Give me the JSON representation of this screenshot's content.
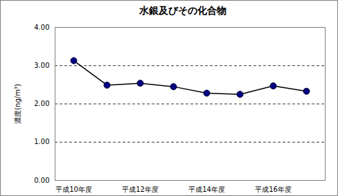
{
  "chart_data": {
    "type": "line",
    "title": "水銀及びその化合物",
    "y_label": "濃度(ng/m³)",
    "categories": [
      "平成10年度",
      null,
      "平成12年度",
      null,
      "平成14年度",
      null,
      "平成16年度",
      null
    ],
    "values": [
      3.13,
      2.49,
      2.54,
      2.45,
      2.28,
      2.25,
      2.47,
      2.33
    ],
    "color": "#000080",
    "marker": "circle",
    "ylim": [
      0,
      4
    ],
    "yticks": [
      {
        "value": 0,
        "label": "0.00"
      },
      {
        "value": 1,
        "label": "1.00"
      },
      {
        "value": 2,
        "label": "2.00"
      },
      {
        "value": 3,
        "label": "3.00"
      },
      {
        "value": 4,
        "label": "4.00"
      }
    ],
    "grid": true
  }
}
